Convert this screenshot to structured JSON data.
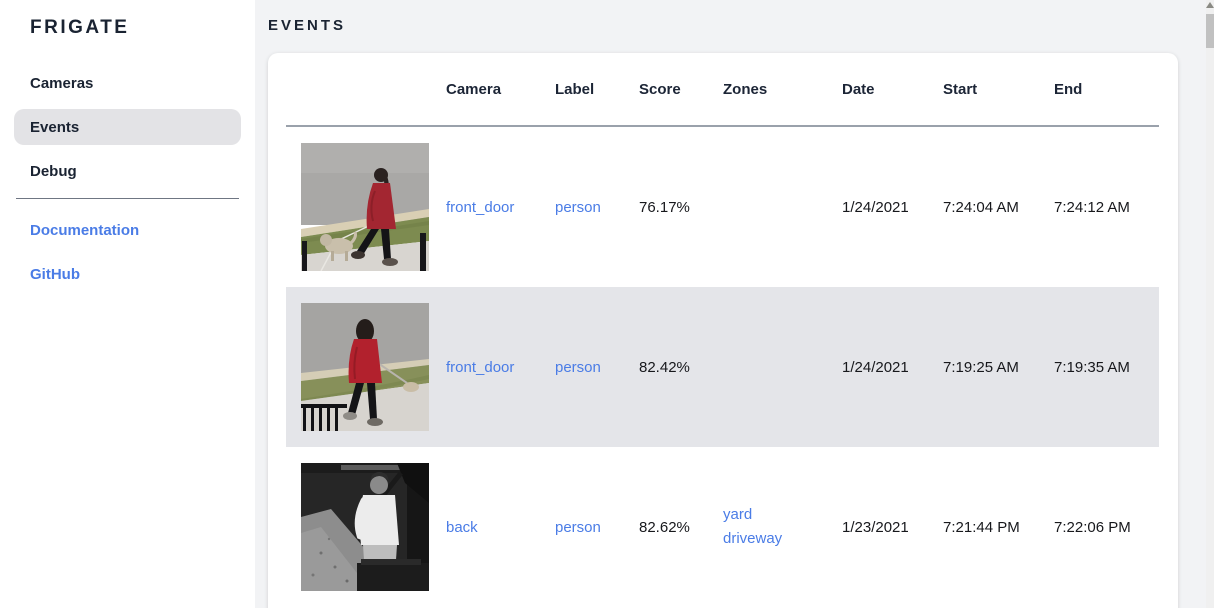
{
  "app": {
    "title": "FRIGATE"
  },
  "sidebar": {
    "nav": [
      {
        "label": "Cameras",
        "selected": false
      },
      {
        "label": "Events",
        "selected": true
      },
      {
        "label": "Debug",
        "selected": false
      }
    ],
    "links": [
      {
        "label": "Documentation"
      },
      {
        "label": "GitHub"
      }
    ]
  },
  "page": {
    "title": "EVENTS"
  },
  "table": {
    "columns": [
      "Camera",
      "Label",
      "Score",
      "Zones",
      "Date",
      "Start",
      "End"
    ],
    "rows": [
      {
        "camera": "front_door",
        "label": "person",
        "score": "76.17%",
        "zones": [],
        "date": "1/24/2021",
        "start": "7:24:04 AM",
        "end": "7:24:12 AM",
        "highlighted": false,
        "thumbnail": "red-coat-dog"
      },
      {
        "camera": "front_door",
        "label": "person",
        "score": "82.42%",
        "zones": [],
        "date": "1/24/2021",
        "start": "7:19:25 AM",
        "end": "7:19:35 AM",
        "highlighted": true,
        "thumbnail": "red-hoodie"
      },
      {
        "camera": "back",
        "label": "person",
        "score": "82.62%",
        "zones": [
          "yard",
          "driveway"
        ],
        "date": "1/23/2021",
        "start": "7:21:44 PM",
        "end": "7:22:06 PM",
        "highlighted": false,
        "thumbnail": "night-person"
      }
    ]
  },
  "colors": {
    "accent_link": "#4a7ce6",
    "heading_text": "#1a2332",
    "body_text": "#17181c",
    "main_bg": "#f2f3f5",
    "card_bg": "#ffffff",
    "row_highlight": "#e4e5e9",
    "selected_nav_bg": "#e3e3e6",
    "header_underline": "#9aa1ab",
    "scrollbar_thumb": "#c1c1c1"
  }
}
